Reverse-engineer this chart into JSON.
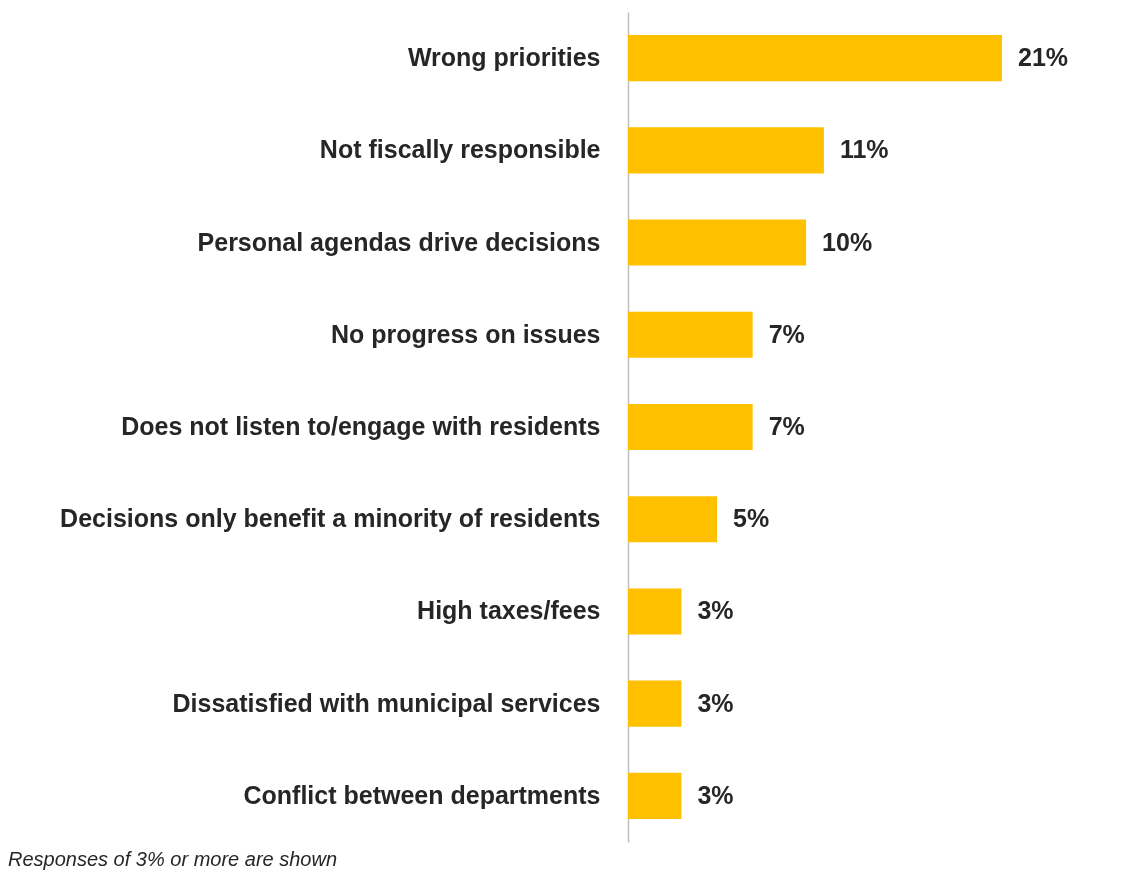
{
  "chart_data": {
    "type": "bar",
    "orientation": "horizontal",
    "categories": [
      "Wrong priorities",
      "Not fiscally responsible",
      "Personal agendas drive decisions",
      "No progress on issues",
      "Does not listen to/engage with residents",
      "Decisions only benefit a minority of residents",
      "High taxes/fees",
      "Dissatisfied with municipal services",
      "Conflict between departments"
    ],
    "values": [
      21,
      11,
      10,
      7,
      7,
      5,
      3,
      3,
      3
    ],
    "value_labels": [
      "21%",
      "11%",
      "10%",
      "7%",
      "7%",
      "5%",
      "3%",
      "3%",
      "3%"
    ],
    "color": "#ffc000",
    "annotations": [
      "Responses of 3% or more are shown"
    ]
  }
}
